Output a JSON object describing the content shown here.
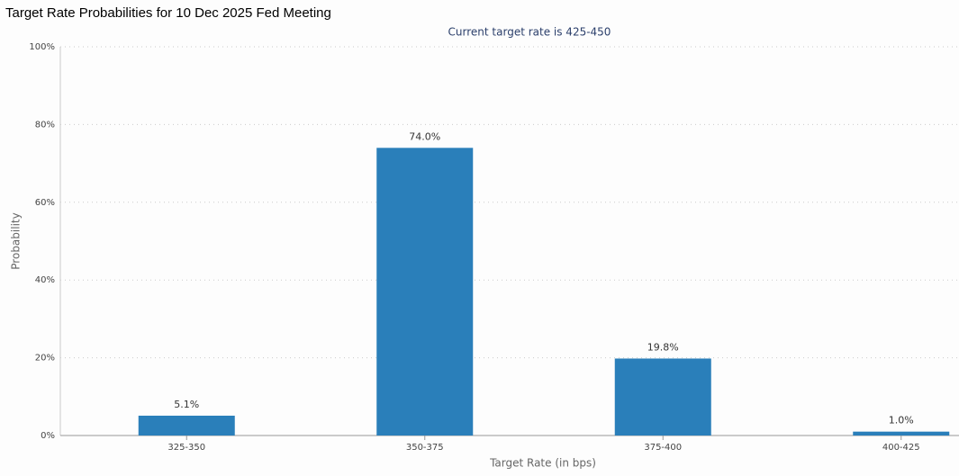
{
  "chart_data": {
    "type": "bar",
    "title": "Target Rate Probabilities for 10 Dec 2025 Fed Meeting",
    "subtitle": "Current target rate is 425-450",
    "x_label": "Target Rate (in bps)",
    "y_label": "Probability",
    "categories": [
      "325-350",
      "350-375",
      "375-400",
      "400-425"
    ],
    "values": [
      5.1,
      74.0,
      19.8,
      1.0
    ],
    "value_labels": [
      "5.1%",
      "74.0%",
      "19.8%",
      "1.0%"
    ],
    "color": "#2a7fba",
    "ylim": [
      0,
      100
    ],
    "yticks": [
      {
        "value": 0,
        "label": "0%"
      },
      {
        "value": 20,
        "label": "20%"
      },
      {
        "value": 40,
        "label": "40%"
      },
      {
        "value": 60,
        "label": "60%"
      },
      {
        "value": 80,
        "label": "80%"
      },
      {
        "value": 100,
        "label": "100%"
      }
    ],
    "grid": true
  }
}
